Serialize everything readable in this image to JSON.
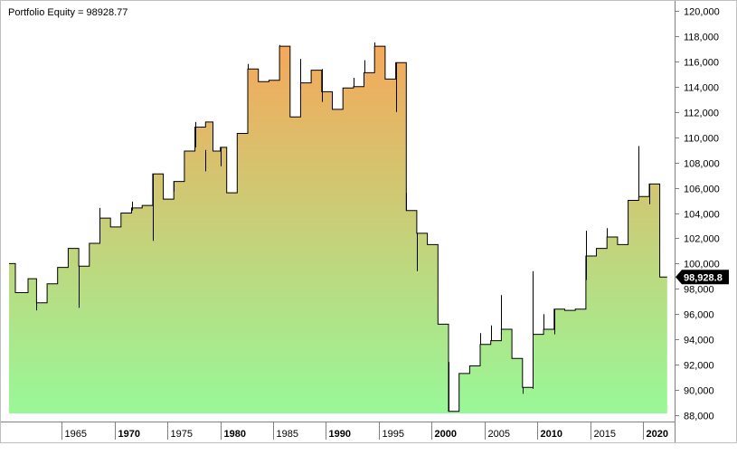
{
  "title": "Portfolio Equity = 98928.77",
  "last_value_label": "98,928.8",
  "colors": {
    "fill_top": "#F5A85A",
    "fill_bottom": "#98F898",
    "line": "#000000",
    "frame": "#808080",
    "background": "#FFFFFF",
    "marker": "#000000"
  },
  "chart_data": {
    "type": "area",
    "title": "Portfolio Equity = 98928.77",
    "xlabel": "",
    "ylabel": "",
    "xlim": [
      1960,
      2023
    ],
    "ylim": [
      87500,
      120500
    ],
    "y_ticks": [
      88000,
      90000,
      92000,
      94000,
      96000,
      98000,
      100000,
      102000,
      104000,
      106000,
      108000,
      110000,
      112000,
      114000,
      116000,
      118000,
      120000
    ],
    "y_tick_labels": [
      "88,000",
      "90,000",
      "92,000",
      "94,000",
      "96,000",
      "98,000",
      "100,000",
      "102,000",
      "104,000",
      "106,000",
      "108,000",
      "110,000",
      "112,000",
      "114,000",
      "116,000",
      "118,000",
      "120,000"
    ],
    "x_ticks": [
      1965,
      1970,
      1975,
      1980,
      1985,
      1990,
      1995,
      2000,
      2005,
      2010,
      2015,
      2020
    ],
    "x_tick_labels": [
      "1965",
      "1970",
      "1975",
      "1980",
      "1985",
      "1990",
      "1995",
      "2000",
      "2005",
      "2010",
      "2015",
      "2020"
    ],
    "x_tick_bold": [
      false,
      true,
      false,
      true,
      false,
      true,
      false,
      true,
      false,
      true,
      false,
      true
    ],
    "grid": false,
    "series": [
      {
        "name": "Portfolio Equity",
        "steps": [
          [
            1960.0,
            100000
          ],
          [
            1960.6,
            97700
          ],
          [
            1961.8,
            98800
          ],
          [
            1962.6,
            96900
          ],
          [
            1963.6,
            98400
          ],
          [
            1964.6,
            99700
          ],
          [
            1965.6,
            101200
          ],
          [
            1966.6,
            99800
          ],
          [
            1967.6,
            101600
          ],
          [
            1968.6,
            103600
          ],
          [
            1969.6,
            102900
          ],
          [
            1970.6,
            104000
          ],
          [
            1971.6,
            104400
          ],
          [
            1972.6,
            104600
          ],
          [
            1973.6,
            107100
          ],
          [
            1974.6,
            105100
          ],
          [
            1975.6,
            106500
          ],
          [
            1976.6,
            108900
          ],
          [
            1977.6,
            110800
          ],
          [
            1978.6,
            111200
          ],
          [
            1979.3,
            108900
          ],
          [
            1980.0,
            109200
          ],
          [
            1980.6,
            105600
          ],
          [
            1981.6,
            110300
          ],
          [
            1982.6,
            115400
          ],
          [
            1983.6,
            114400
          ],
          [
            1984.6,
            114500
          ],
          [
            1985.6,
            117200
          ],
          [
            1986.6,
            111600
          ],
          [
            1987.6,
            114300
          ],
          [
            1988.6,
            115300
          ],
          [
            1989.6,
            113600
          ],
          [
            1990.6,
            112200
          ],
          [
            1991.6,
            113900
          ],
          [
            1992.6,
            114000
          ],
          [
            1993.6,
            115100
          ],
          [
            1994.6,
            117200
          ],
          [
            1995.6,
            114600
          ],
          [
            1996.6,
            115900
          ],
          [
            1997.6,
            104200
          ],
          [
            1998.6,
            102400
          ],
          [
            1999.6,
            101500
          ],
          [
            2000.6,
            95200
          ],
          [
            2001.6,
            88300
          ],
          [
            2002.6,
            91300
          ],
          [
            2003.6,
            91900
          ],
          [
            2004.6,
            93600
          ],
          [
            2005.6,
            93900
          ],
          [
            2006.6,
            94800
          ],
          [
            2007.6,
            92500
          ],
          [
            2008.6,
            90200
          ],
          [
            2009.6,
            94400
          ],
          [
            2010.6,
            94800
          ],
          [
            2011.6,
            96400
          ],
          [
            2012.6,
            96300
          ],
          [
            2013.6,
            96400
          ],
          [
            2014.6,
            100600
          ],
          [
            2015.6,
            101200
          ],
          [
            2016.6,
            102100
          ],
          [
            2017.6,
            101500
          ],
          [
            2018.6,
            105000
          ],
          [
            2019.6,
            105300
          ],
          [
            2020.6,
            106300
          ],
          [
            2021.6,
            98929
          ]
        ],
        "end_x": 2022.3,
        "wicks": [
          [
            1962.6,
            96300,
            97000
          ],
          [
            1966.6,
            96500,
            99800
          ],
          [
            1968.6,
            103600,
            104400
          ],
          [
            1971.6,
            104200,
            104900
          ],
          [
            1973.6,
            101800,
            107100
          ],
          [
            1975.6,
            105700,
            106500
          ],
          [
            1977.6,
            109200,
            111200
          ],
          [
            1978.6,
            107300,
            109000
          ],
          [
            1980.0,
            107700,
            109200
          ],
          [
            1982.6,
            115400,
            115800
          ],
          [
            1985.6,
            117200,
            117300
          ],
          [
            1987.6,
            113800,
            116200
          ],
          [
            1989.6,
            112800,
            115400
          ],
          [
            1992.6,
            114000,
            114700
          ],
          [
            1993.6,
            115100,
            116100
          ],
          [
            1994.6,
            117200,
            117500
          ],
          [
            1996.6,
            112000,
            115900
          ],
          [
            1997.6,
            104200,
            105600
          ],
          [
            1998.6,
            99400,
            102400
          ],
          [
            2001.6,
            88300,
            92200
          ],
          [
            2004.6,
            93600,
            94500
          ],
          [
            2005.6,
            93900,
            95100
          ],
          [
            2006.6,
            94400,
            97500
          ],
          [
            2008.6,
            89700,
            90200
          ],
          [
            2009.6,
            90100,
            99400
          ],
          [
            2010.6,
            94800,
            96000
          ],
          [
            2011.6,
            94400,
            96400
          ],
          [
            2014.6,
            98700,
            102600
          ],
          [
            2016.6,
            102100,
            102800
          ],
          [
            2019.6,
            105300,
            109300
          ],
          [
            2020.6,
            104700,
            106300
          ]
        ]
      }
    ]
  }
}
